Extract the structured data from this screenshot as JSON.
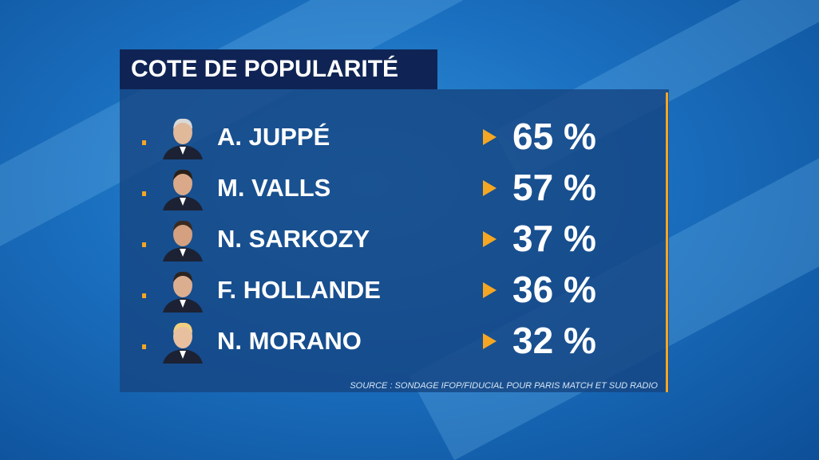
{
  "title": "COTE DE POPULARITÉ",
  "rows": [
    {
      "name": "A. JUPPÉ",
      "value": "65 %"
    },
    {
      "name": "M. VALLS",
      "value": "57 %"
    },
    {
      "name": "N. SARKOZY",
      "value": "37 %"
    },
    {
      "name": "F. HOLLANDE",
      "value": "36 %"
    },
    {
      "name": "N. MORANO",
      "value": "32 %"
    }
  ],
  "source": "SOURCE : SONDAGE IFOP/FIDUCIAL POUR PARIS MATCH ET SUD RADIO"
}
